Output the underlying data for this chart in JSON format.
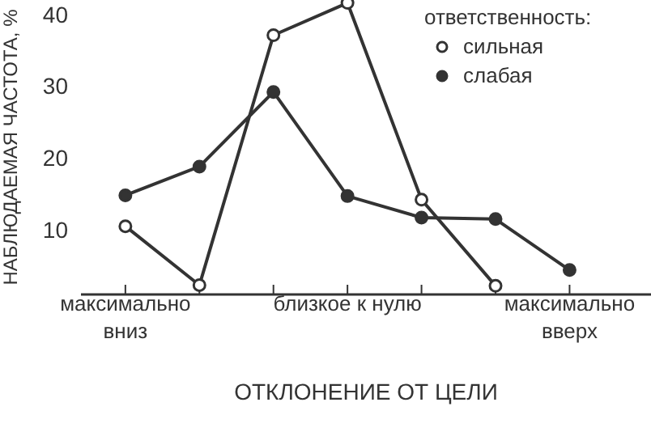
{
  "chart_data": {
    "type": "line",
    "xlabel": "ОТКЛОНЕНИЕ ОТ ЦЕЛИ",
    "ylabel": "НАБЛЮДАЕМАЯ ЧАСТОТА, %",
    "legend_title": "ответственность:",
    "categories": [
      "максимально вниз",
      null,
      null,
      "близкое к нулю",
      null,
      null,
      "максимально вверх"
    ],
    "series": [
      {
        "name": "сильная",
        "color": "#333333",
        "values": [
          10.5,
          2.3,
          37.1,
          41.6,
          14.2,
          2.2,
          null
        ]
      },
      {
        "name": "слабая",
        "color": "#333333",
        "values": [
          14.8,
          18.8,
          29.2,
          14.7,
          11.7,
          11.5,
          4.4
        ]
      }
    ],
    "ylim": [
      1,
      42
    ],
    "yticks": [
      10,
      20,
      30,
      40
    ],
    "grid": false,
    "legend": "top right",
    "marker": "circle",
    "line_style": "solid"
  }
}
